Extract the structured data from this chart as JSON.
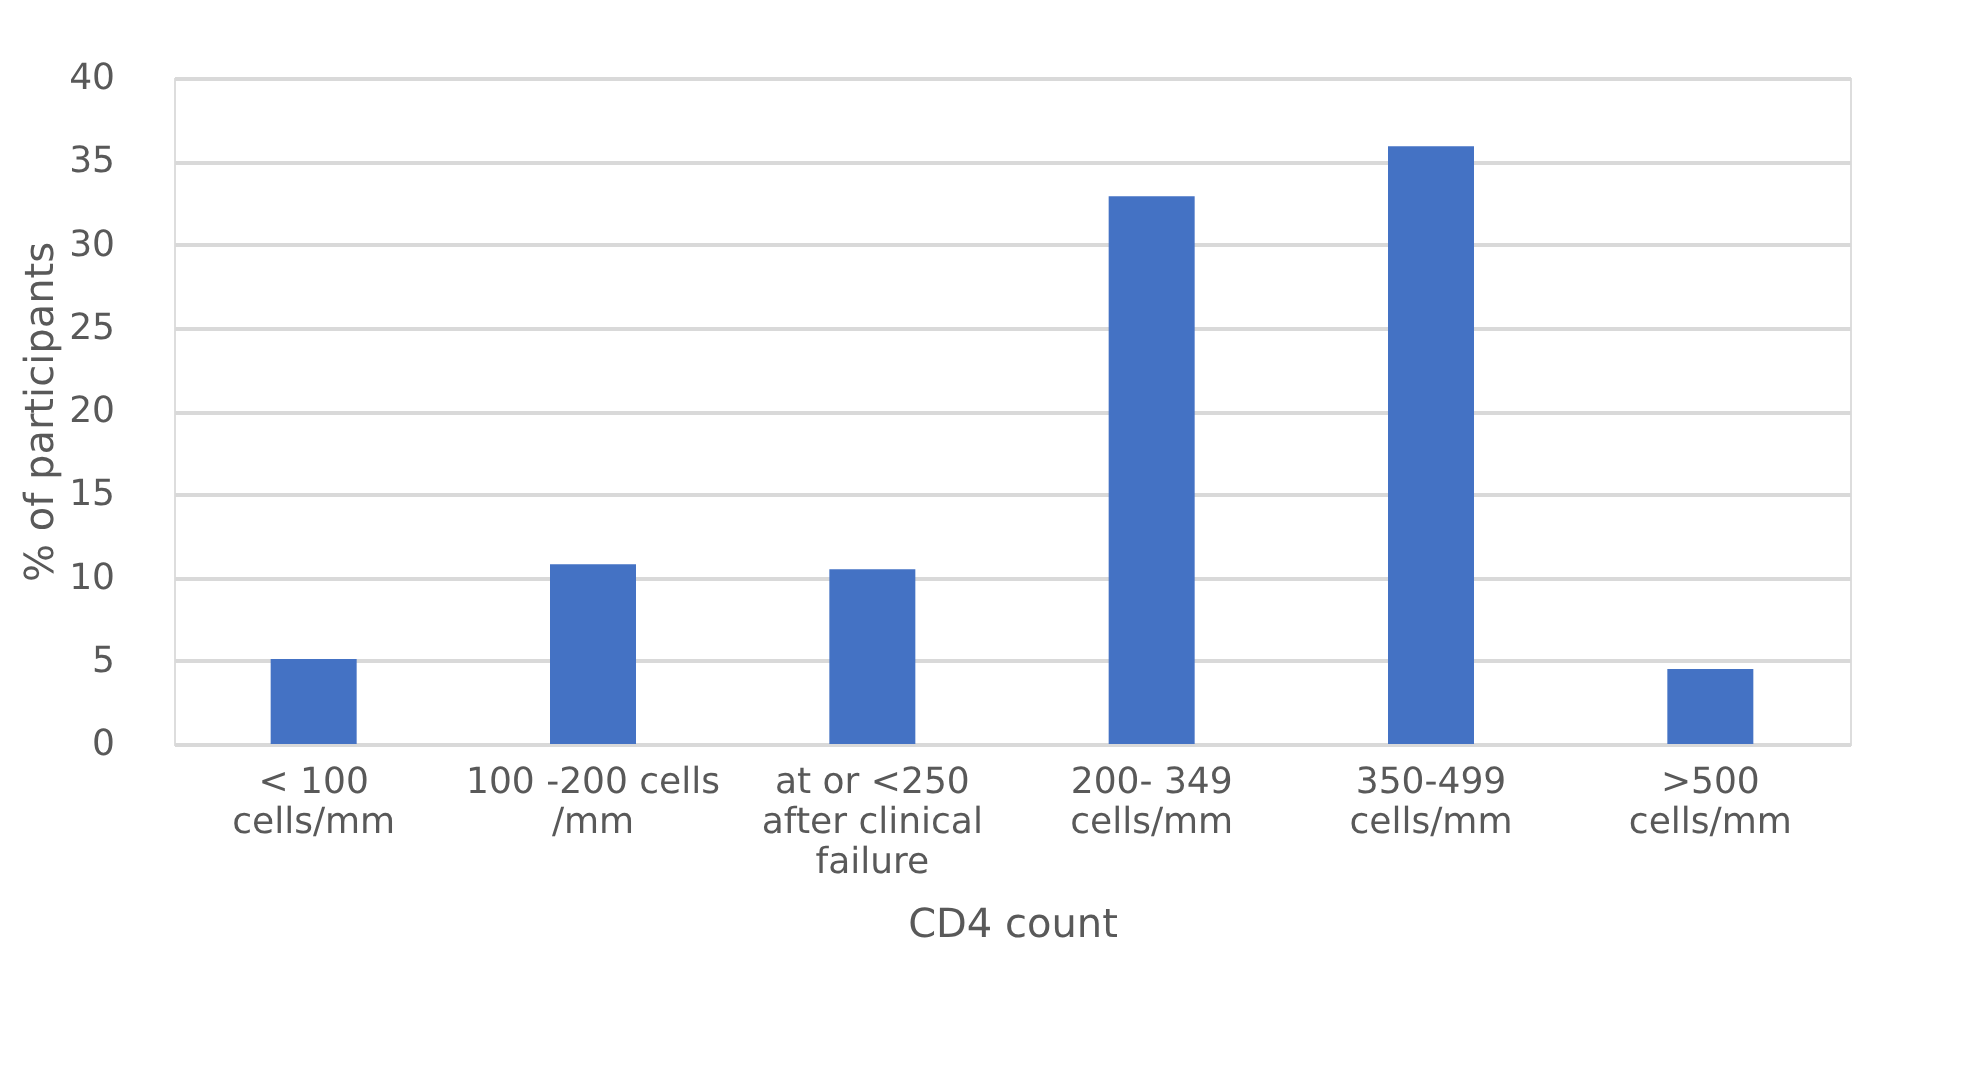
{
  "chart_data": {
    "type": "bar",
    "xlabel": "CD4 count",
    "ylabel": "% of participants",
    "categories": [
      "< 100\ncells/mm",
      "100 -200 cells\n/mm",
      "at or <250\nafter clinical\nfailure",
      "200- 349\ncells/mm",
      "350-499\ncells/mm",
      ">500\ncells/mm"
    ],
    "values": [
      5.1,
      10.8,
      10.5,
      32.9,
      35.9,
      4.5
    ],
    "color": "#4472c4",
    "ylim": [
      0,
      40
    ],
    "yticks": [
      0,
      5,
      10,
      15,
      20,
      25,
      30,
      35,
      40
    ],
    "grid": "y"
  }
}
